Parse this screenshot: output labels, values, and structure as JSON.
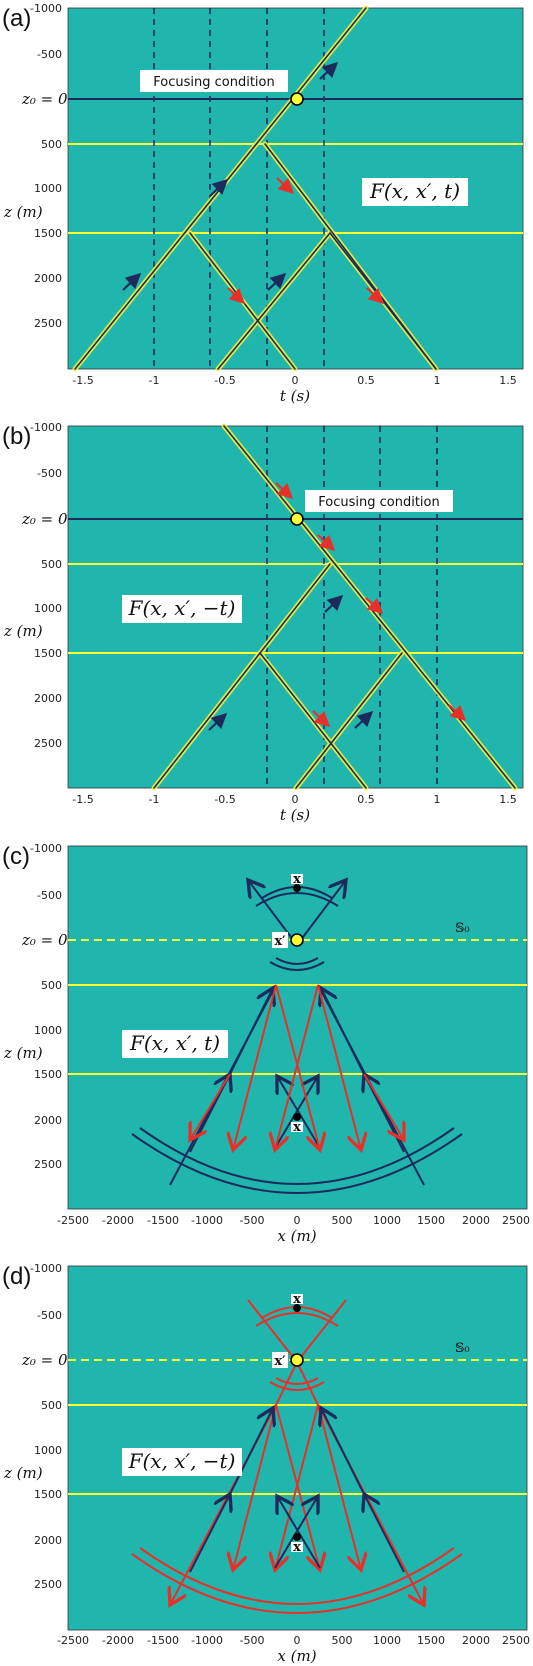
{
  "colors": {
    "background": "#20b5ad",
    "navy": "#1c2a5c",
    "yellow": "#ffff33",
    "red": "#e8302a",
    "black": "#000000",
    "white": "#ffffff"
  },
  "panels": [
    {
      "id": "a",
      "label": "(a)",
      "xlabel": "t (s)",
      "ylabel": "z (m)",
      "z0_label": "z₀ = 0",
      "xlim": [
        -1.6,
        1.6
      ],
      "ylim": [
        -1000,
        3000
      ],
      "xticks": [
        "-1.5",
        "-1",
        "-0.5",
        "0",
        "0.5",
        "1",
        "1.5"
      ],
      "yticks": [
        "-1000",
        "-500",
        "0",
        "500",
        "1000",
        "1500",
        "2000",
        "2500"
      ],
      "annotation": "Focusing condition",
      "formula": "F(x, x′, t)"
    },
    {
      "id": "b",
      "label": "(b)",
      "xlabel": "t (s)",
      "ylabel": "z (m)",
      "z0_label": "z₀ = 0",
      "xlim": [
        -1.6,
        1.6
      ],
      "ylim": [
        -1000,
        3000
      ],
      "xticks": [
        "-1.5",
        "-1",
        "-0.5",
        "0",
        "0.5",
        "1",
        "1.5"
      ],
      "yticks": [
        "-1000",
        "-500",
        "0",
        "500",
        "1000",
        "1500",
        "2000",
        "2500"
      ],
      "annotation": "Focusing condition",
      "formula": "F(x, x′, −t)"
    },
    {
      "id": "c",
      "label": "(c)",
      "xlabel": "x (m)",
      "ylabel": "z (m)",
      "z0_label": "z₀ = 0",
      "xlim": [
        -2500,
        2500
      ],
      "ylim": [
        -1000,
        3000
      ],
      "xticks": [
        "-2500",
        "-2000",
        "-1500",
        "-1000",
        "-500",
        "0",
        "500",
        "1000",
        "1500",
        "2000",
        "2500"
      ],
      "yticks": [
        "-1000",
        "-500",
        "0",
        "500",
        "1000",
        "1500",
        "2000",
        "2500"
      ],
      "formula": "F(x, x′, t)",
      "s0_label": "𝕊₀",
      "x_label": "x",
      "xprime_label": "x′"
    },
    {
      "id": "d",
      "label": "(d)",
      "xlabel": "x (m)",
      "ylabel": "z (m)",
      "z0_label": "z₀ = 0",
      "xlim": [
        -2500,
        2500
      ],
      "ylim": [
        -1000,
        3000
      ],
      "xticks": [
        "-2500",
        "-2000",
        "-1500",
        "-1000",
        "-500",
        "0",
        "500",
        "1000",
        "1500",
        "2000",
        "2500"
      ],
      "yticks": [
        "-1000",
        "-500",
        "0",
        "500",
        "1000",
        "1500",
        "2000",
        "2500"
      ],
      "formula": "F(x, x′, −t)",
      "s0_label": "𝕊₀",
      "x_label": "x",
      "xprime_label": "x′"
    }
  ]
}
